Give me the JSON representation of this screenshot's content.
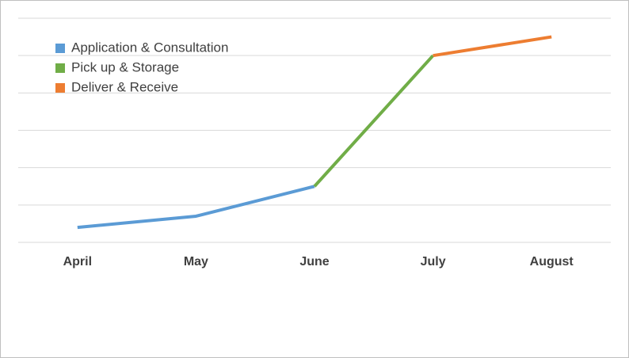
{
  "chart_data": {
    "type": "line",
    "categories": [
      "April",
      "May",
      "June",
      "July",
      "August"
    ],
    "series": [
      {
        "name": "Application & Consultation",
        "color": "#5b9bd5",
        "values": [
          0.4,
          0.7,
          1.5,
          null,
          null
        ]
      },
      {
        "name": "Pick up & Storage",
        "color": "#70ad47",
        "values": [
          null,
          null,
          1.5,
          5.0,
          null
        ]
      },
      {
        "name": "Deliver & Receive",
        "color": "#ed7d31",
        "values": [
          null,
          null,
          null,
          5.0,
          5.5
        ]
      }
    ],
    "ylim": [
      0,
      6
    ],
    "yticks": [
      0,
      1,
      2,
      3,
      4,
      5,
      6
    ],
    "grid": true,
    "legend": "top-left"
  }
}
